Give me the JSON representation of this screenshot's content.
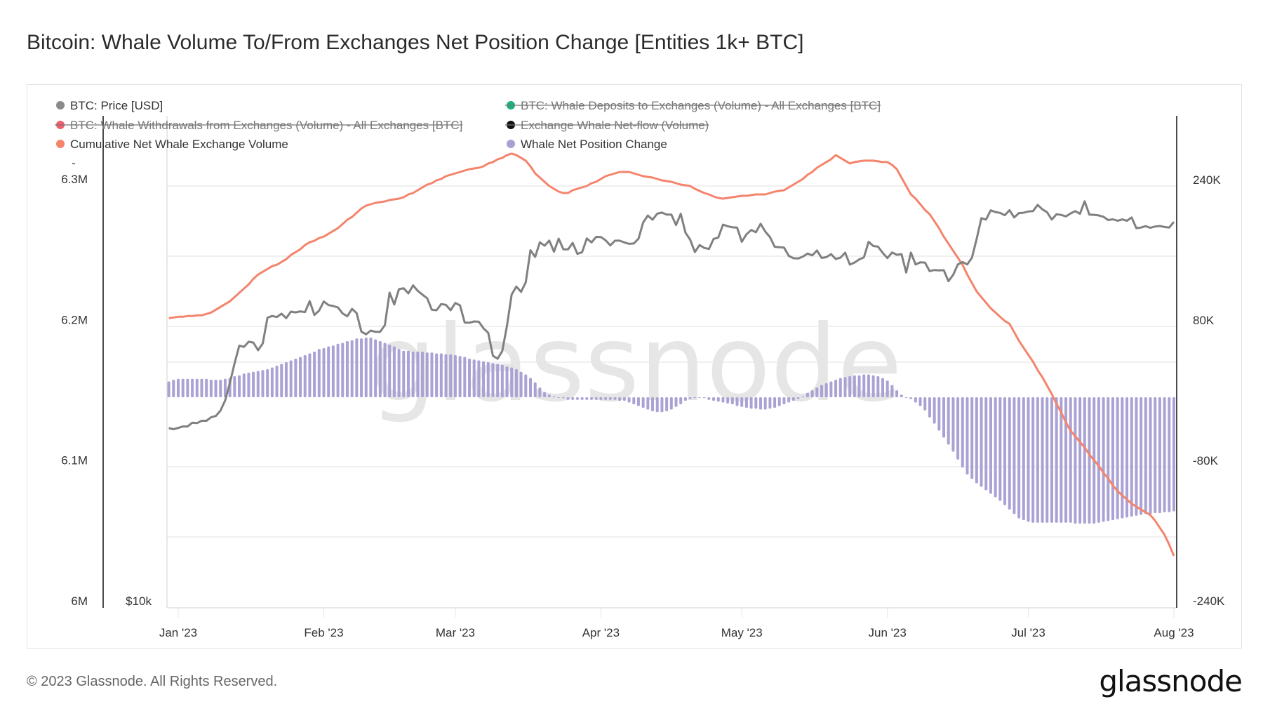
{
  "title": "Bitcoin: Whale Volume To/From Exchanges Net Position Change [Entities 1k+ BTC]",
  "footer": {
    "copyright": "© 2023 Glassnode. All Rights Reserved.",
    "logo": "glassnode"
  },
  "watermark": "glassnode",
  "chart_data": {
    "type": "line+bar",
    "title": "Bitcoin: Whale Volume To/From Exchanges Net Position Change [Entities 1k+ BTC]",
    "grid": true,
    "legend_position": "top-left",
    "legend": [
      {
        "label": "BTC: Price [USD]",
        "color": "#8a8a8a",
        "enabled": true
      },
      {
        "label": "BTC: Whale Deposits to Exchanges (Volume) - All Exchanges [BTC]",
        "color": "#1bb07e",
        "enabled": false
      },
      {
        "label": "BTC: Whale Withdrawals from Exchanges (Volume) - All Exchanges [BTC]",
        "color": "#ef5f6e",
        "enabled": false
      },
      {
        "label": "Exchange Whale Net-flow (Volume)",
        "color": "#111111",
        "enabled": false
      },
      {
        "label": "Cumulative Net Whale Exchange Volume",
        "color": "#f4846c",
        "enabled": true
      },
      {
        "label": "Whale Net Position Change",
        "color": "#a9a0d3",
        "enabled": true
      }
    ],
    "x_axis": {
      "ticks": [
        "Jan '23",
        "Feb '23",
        "Mar '23",
        "Apr '23",
        "May '23",
        "Jun '23",
        "Jul '23",
        "Aug '23"
      ],
      "tick_dates": [
        "2023-01-01",
        "2023-02-01",
        "2023-03-01",
        "2023-04-01",
        "2023-05-01",
        "2023-06-01",
        "2023-07-01",
        "2023-08-01"
      ]
    },
    "y_axis_left_volume": {
      "ticks": [
        "6.3M",
        "6.2M",
        "6.1M",
        "6M"
      ],
      "tick_values": [
        6300000,
        6200000,
        6100000,
        6000000
      ],
      "range": [
        6000000,
        6350000
      ],
      "extra_label": "-"
    },
    "y_axis_left_price": {
      "scale": "log",
      "ticks": [
        "$10k"
      ],
      "tick_values": [
        10000
      ]
    },
    "y_axis_right": {
      "ticks": [
        "240K",
        "80K",
        "-80K",
        "-240K"
      ],
      "tick_values": [
        240000,
        80000,
        -80000,
        -240000
      ],
      "range": [
        -240000,
        320000
      ]
    },
    "x": [
      "2022-12-30",
      "2022-12-31",
      "2023-01-01",
      "2023-01-02",
      "2023-01-03",
      "2023-01-04",
      "2023-01-05",
      "2023-01-06",
      "2023-01-07",
      "2023-01-08",
      "2023-01-09",
      "2023-01-10",
      "2023-01-11",
      "2023-01-12",
      "2023-01-13",
      "2023-01-14",
      "2023-01-15",
      "2023-01-16",
      "2023-01-17",
      "2023-01-18",
      "2023-01-19",
      "2023-01-20",
      "2023-01-21",
      "2023-01-22",
      "2023-01-23",
      "2023-01-24",
      "2023-01-25",
      "2023-01-26",
      "2023-01-27",
      "2023-01-28",
      "2023-01-29",
      "2023-01-30",
      "2023-01-31",
      "2023-02-01",
      "2023-02-02",
      "2023-02-03",
      "2023-02-04",
      "2023-02-05",
      "2023-02-06",
      "2023-02-07",
      "2023-02-08",
      "2023-02-09",
      "2023-02-10",
      "2023-02-11",
      "2023-02-12",
      "2023-02-13",
      "2023-02-14",
      "2023-02-15",
      "2023-02-16",
      "2023-02-17",
      "2023-02-18",
      "2023-02-19",
      "2023-02-20",
      "2023-02-21",
      "2023-02-22",
      "2023-02-23",
      "2023-02-24",
      "2023-02-25",
      "2023-02-26",
      "2023-02-27",
      "2023-02-28",
      "2023-03-01",
      "2023-03-02",
      "2023-03-03",
      "2023-03-04",
      "2023-03-05",
      "2023-03-06",
      "2023-03-07",
      "2023-03-08",
      "2023-03-09",
      "2023-03-10",
      "2023-03-11",
      "2023-03-12",
      "2023-03-13",
      "2023-03-14",
      "2023-03-15",
      "2023-03-16",
      "2023-03-17",
      "2023-03-18",
      "2023-03-19",
      "2023-03-20",
      "2023-03-21",
      "2023-03-22",
      "2023-03-23",
      "2023-03-24",
      "2023-03-25",
      "2023-03-26",
      "2023-03-27",
      "2023-03-28",
      "2023-03-29",
      "2023-03-30",
      "2023-03-31",
      "2023-04-01",
      "2023-04-02",
      "2023-04-03",
      "2023-04-04",
      "2023-04-05",
      "2023-04-06",
      "2023-04-07",
      "2023-04-08",
      "2023-04-09",
      "2023-04-10",
      "2023-04-11",
      "2023-04-12",
      "2023-04-13",
      "2023-04-14",
      "2023-04-15",
      "2023-04-16",
      "2023-04-17",
      "2023-04-18",
      "2023-04-19",
      "2023-04-20",
      "2023-04-21",
      "2023-04-22",
      "2023-04-23",
      "2023-04-24",
      "2023-04-25",
      "2023-04-26",
      "2023-04-27",
      "2023-04-28",
      "2023-04-29",
      "2023-04-30",
      "2023-05-01",
      "2023-05-02",
      "2023-05-03",
      "2023-05-04",
      "2023-05-05",
      "2023-05-06",
      "2023-05-07",
      "2023-05-08",
      "2023-05-09",
      "2023-05-10",
      "2023-05-11",
      "2023-05-12",
      "2023-05-13",
      "2023-05-14",
      "2023-05-15",
      "2023-05-16",
      "2023-05-17",
      "2023-05-18",
      "2023-05-19",
      "2023-05-20",
      "2023-05-21",
      "2023-05-22",
      "2023-05-23",
      "2023-05-24",
      "2023-05-25",
      "2023-05-26",
      "2023-05-27",
      "2023-05-28",
      "2023-05-29",
      "2023-05-30",
      "2023-05-31",
      "2023-06-01",
      "2023-06-02",
      "2023-06-03",
      "2023-06-04",
      "2023-06-05",
      "2023-06-06",
      "2023-06-07",
      "2023-06-08",
      "2023-06-09",
      "2023-06-10",
      "2023-06-11",
      "2023-06-12",
      "2023-06-13",
      "2023-06-14",
      "2023-06-15",
      "2023-06-16",
      "2023-06-17",
      "2023-06-18",
      "2023-06-19",
      "2023-06-20",
      "2023-06-21",
      "2023-06-22",
      "2023-06-23",
      "2023-06-24",
      "2023-06-25",
      "2023-06-26",
      "2023-06-27",
      "2023-06-28",
      "2023-06-29",
      "2023-06-30",
      "2023-07-01",
      "2023-07-02",
      "2023-07-03",
      "2023-07-04",
      "2023-07-05",
      "2023-07-06",
      "2023-07-07",
      "2023-07-08",
      "2023-07-09",
      "2023-07-10",
      "2023-07-11",
      "2023-07-12",
      "2023-07-13",
      "2023-07-14",
      "2023-07-15",
      "2023-07-16",
      "2023-07-17",
      "2023-07-18",
      "2023-07-19",
      "2023-07-20",
      "2023-07-21",
      "2023-07-22",
      "2023-07-23",
      "2023-07-24",
      "2023-07-25",
      "2023-07-26",
      "2023-07-27",
      "2023-07-28",
      "2023-07-29",
      "2023-07-30",
      "2023-07-31",
      "2023-08-01"
    ],
    "series": [
      {
        "name": "BTC: Price [USD]",
        "type": "line",
        "axis": "price-log",
        "values": [
          16600,
          16550,
          16610,
          16680,
          16680,
          16860,
          16840,
          16950,
          16950,
          17120,
          17180,
          17440,
          17950,
          18850,
          19930,
          20950,
          20880,
          21180,
          21130,
          20680,
          21080,
          22670,
          22780,
          22710,
          22930,
          22640,
          23060,
          23010,
          23080,
          23030,
          23750,
          22840,
          23130,
          23730,
          23490,
          23430,
          23330,
          22940,
          22760,
          23240,
          22960,
          21800,
          21630,
          21860,
          21780,
          21780,
          22200,
          24330,
          23530,
          24570,
          24630,
          24280,
          24830,
          24450,
          24190,
          23950,
          23190,
          23150,
          23560,
          23500,
          23150,
          23630,
          23470,
          22360,
          22350,
          22430,
          22410,
          22000,
          21720,
          20360,
          20190,
          20630,
          22150,
          24200,
          24750,
          24380,
          25050,
          27420,
          26910,
          28040,
          27770,
          28180,
          27310,
          28330,
          27490,
          27490,
          27990,
          27140,
          27270,
          28350,
          28030,
          28470,
          28460,
          28200,
          27800,
          28170,
          28170,
          28030,
          27920,
          27950,
          28330,
          29650,
          30240,
          29890,
          30400,
          30490,
          30320,
          30320,
          29440,
          30390,
          28820,
          28250,
          27280,
          27820,
          27600,
          27520,
          28310,
          28420,
          29470,
          29340,
          29250,
          29230,
          28080,
          28680,
          29030,
          28850,
          29540,
          28900,
          28450,
          27690,
          27650,
          27630,
          26990,
          26810,
          26790,
          26930,
          27170,
          27030,
          27400,
          26830,
          26890,
          27120,
          26750,
          26850,
          27230,
          26330,
          26480,
          26720,
          26870,
          28080,
          27750,
          27700,
          27220,
          26820,
          27250,
          27070,
          27120,
          25750,
          27240,
          26340,
          26500,
          26480,
          25850,
          25930,
          25900,
          25920,
          25130,
          25580,
          26340,
          26520,
          26340,
          26850,
          28310,
          30010,
          29900,
          30690,
          30540,
          30470,
          30270,
          30700,
          30080,
          30450,
          30480,
          30590,
          30620,
          31160,
          30770,
          30520,
          29900,
          30350,
          30290,
          30170,
          30420,
          30620,
          30390,
          31480,
          30320,
          30300,
          30250,
          30140,
          29860,
          29920,
          29800,
          29910,
          29800,
          30080,
          29180,
          29230,
          29350,
          29210,
          29320,
          29360,
          29280,
          29230,
          29700
        ]
      },
      {
        "name": "Cumulative Net Whale Exchange Volume",
        "type": "line",
        "axis": "left-volume",
        "values": [
          6206000,
          6206500,
          6207000,
          6207000,
          6207500,
          6207500,
          6208000,
          6208000,
          6209000,
          6210000,
          6212000,
          6214000,
          6216000,
          6218000,
          6221000,
          6224000,
          6227000,
          6230000,
          6234000,
          6237000,
          6239000,
          6241000,
          6243000,
          6244000,
          6246000,
          6248000,
          6251000,
          6253000,
          6255000,
          6258000,
          6260000,
          6261000,
          6263000,
          6264000,
          6266000,
          6268000,
          6270000,
          6273000,
          6276000,
          6278000,
          6281000,
          6284000,
          6286000,
          6287000,
          6288000,
          6288500,
          6289000,
          6290000,
          6290500,
          6291000,
          6292000,
          6294000,
          6295000,
          6297000,
          6299000,
          6301000,
          6302000,
          6304000,
          6305000,
          6307000,
          6308000,
          6309000,
          6310000,
          6311000,
          6312000,
          6312500,
          6313000,
          6314000,
          6316000,
          6317000,
          6319000,
          6320000,
          6322000,
          6323000,
          6322000,
          6320000,
          6318000,
          6314000,
          6309000,
          6306000,
          6303000,
          6300000,
          6298000,
          6296000,
          6295000,
          6295000,
          6297000,
          6298000,
          6299000,
          6300000,
          6302000,
          6303000,
          6305000,
          6307000,
          6308000,
          6309000,
          6310000,
          6310000,
          6310000,
          6309000,
          6308000,
          6307000,
          6306500,
          6306000,
          6305000,
          6304000,
          6303500,
          6303000,
          6302000,
          6301000,
          6300500,
          6300000,
          6298000,
          6296500,
          6295000,
          6294000,
          6292500,
          6291500,
          6291000,
          6291500,
          6292000,
          6292500,
          6293000,
          6293000,
          6293500,
          6294000,
          6294000,
          6294000,
          6295000,
          6296000,
          6296500,
          6297000,
          6299000,
          6301000,
          6303000,
          6305000,
          6308000,
          6310000,
          6313000,
          6315000,
          6317000,
          6319000,
          6322000,
          6320000,
          6318000,
          6316000,
          6317000,
          6317500,
          6318000,
          6318000,
          6318000,
          6317500,
          6317000,
          6317000,
          6315000,
          6312000,
          6306000,
          6300000,
          6294000,
          6291000,
          6287000,
          6283000,
          6280000,
          6275000,
          6270000,
          6264000,
          6259000,
          6254000,
          6249000,
          6244000,
          6237000,
          6231000,
          6225000,
          6221000,
          6217000,
          6213000,
          6210000,
          6207000,
          6204000,
          6202000,
          6196000,
          6190000,
          6185000,
          6180000,
          6175000,
          6169000,
          6164000,
          6158000,
          6152000,
          6145000,
          6139000,
          6132000,
          6126000,
          6122000,
          6118000,
          6114000,
          6109000,
          6105000,
          6101000,
          6096000,
          6092000,
          6087000,
          6083000,
          6080000,
          6077000,
          6074000,
          6072000,
          6070000,
          6068000,
          6066000,
          6062000,
          6057000,
          6052000,
          6045000,
          6037000
        ]
      },
      {
        "name": "Whale Net Position Change",
        "type": "bar",
        "axis": "right",
        "values": [
          18000,
          20000,
          21000,
          21000,
          21000,
          21000,
          21000,
          21000,
          21000,
          20000,
          20000,
          20000,
          21000,
          22000,
          24000,
          25000,
          27000,
          28000,
          29000,
          30000,
          31000,
          32000,
          34000,
          36000,
          38000,
          40000,
          42000,
          44000,
          46000,
          48000,
          50000,
          52000,
          55000,
          56000,
          58000,
          59000,
          61000,
          62000,
          64000,
          65000,
          67000,
          67000,
          68000,
          68000,
          66000,
          64000,
          62000,
          60000,
          58000,
          55000,
          53000,
          53000,
          52000,
          52000,
          52000,
          51000,
          51000,
          50000,
          50000,
          49000,
          49000,
          48000,
          47000,
          46000,
          44000,
          43000,
          42000,
          41000,
          40000,
          39000,
          38000,
          37000,
          35000,
          34000,
          32000,
          29000,
          26000,
          22000,
          17000,
          11000,
          6000,
          3000,
          1000,
          0,
          -1000,
          -3000,
          -3000,
          -3000,
          -3000,
          -3000,
          -3000,
          -3000,
          -3000,
          -3000,
          -3000,
          -3000,
          -4000,
          -4000,
          -6000,
          -8000,
          -10000,
          -12000,
          -14000,
          -16000,
          -17000,
          -17000,
          -16000,
          -14000,
          -11000,
          -8000,
          -4000,
          -2000,
          -1000,
          0,
          -1000,
          -3000,
          -4000,
          -5000,
          -6000,
          -7000,
          -8000,
          -10000,
          -11000,
          -12000,
          -13000,
          -13000,
          -14000,
          -14000,
          -13000,
          -12000,
          -10000,
          -8000,
          -6000,
          -4000,
          -2000,
          1000,
          5000,
          8000,
          11000,
          14000,
          16000,
          18000,
          20000,
          22000,
          23000,
          24000,
          25000,
          25000,
          26000,
          26000,
          25000,
          24000,
          22000,
          19000,
          14000,
          8000,
          3000,
          0,
          -2000,
          -6000,
          -10000,
          -15000,
          -23000,
          -30000,
          -38000,
          -46000,
          -54000,
          -62000,
          -71000,
          -80000,
          -88000,
          -93000,
          -98000,
          -102000,
          -106000,
          -110000,
          -114000,
          -118000,
          -123000,
          -128000,
          -133000,
          -138000,
          -140000,
          -142000,
          -143000,
          -143000,
          -143000,
          -143000,
          -143000,
          -143000,
          -143000,
          -143000,
          -143000,
          -144000,
          -144000,
          -144000,
          -144000,
          -144000,
          -143000,
          -142000,
          -141000,
          -140000,
          -139000,
          -138000,
          -137000,
          -136000,
          -135000,
          -134000,
          -133000,
          -133000,
          -132000,
          -132000,
          -131000,
          -131000,
          -130000
        ]
      }
    ]
  }
}
